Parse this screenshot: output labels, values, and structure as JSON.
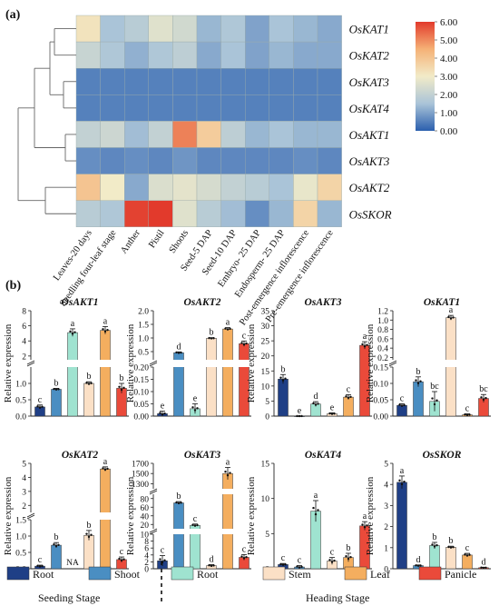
{
  "panel_a_label": "(a)",
  "panel_b_label": "(b)",
  "chart_data": [
    {
      "type": "heatmap",
      "rows": [
        "OsKAT1",
        "OsKAT2",
        "OsKAT3",
        "OsKAT4",
        "OsAKT1",
        "OsAKT3",
        "OsAKT2",
        "OsSKOR"
      ],
      "columns": [
        "Leaves-20 days",
        "Seedling four-leaf stage",
        "Anther",
        "Pistil",
        "Shoots",
        "Seed-5 DAP",
        "Seed-10 DAP",
        "Embryo- 25 DAP",
        "Endosperm- 25 DAP",
        "Post-emergence inflorescence",
        "Pre-emergence inflorescence"
      ],
      "values": [
        [
          3.2,
          1.5,
          1.8,
          2.6,
          2.3,
          1.3,
          1.6,
          1.0,
          1.5,
          1.3,
          1.1
        ],
        [
          2.1,
          1.6,
          1.2,
          1.6,
          1.9,
          1.1,
          1.5,
          1.0,
          1.3,
          1.1,
          1.1
        ],
        [
          0.5,
          0.5,
          0.5,
          0.5,
          0.5,
          0.5,
          0.5,
          0.5,
          0.5,
          0.5,
          0.5
        ],
        [
          0.5,
          0.5,
          0.5,
          0.5,
          0.5,
          0.5,
          0.5,
          0.5,
          0.5,
          0.5,
          0.5
        ],
        [
          2.0,
          2.2,
          1.4,
          2.0,
          5.1,
          3.8,
          1.9,
          1.3,
          1.5,
          1.3,
          1.3
        ],
        [
          0.7,
          0.6,
          0.7,
          0.6,
          0.8,
          0.6,
          0.6,
          0.6,
          0.6,
          0.7,
          0.6
        ],
        [
          4.0,
          3.0,
          1.1,
          2.5,
          2.7,
          2.4,
          2.0,
          1.8,
          1.5,
          2.8,
          3.6
        ],
        [
          1.8,
          1.6,
          5.9,
          6.0,
          2.6,
          1.8,
          1.4,
          0.7,
          1.3,
          3.6,
          1.3
        ]
      ],
      "colorbar": {
        "min": 0.0,
        "max": 6.0,
        "ticks": [
          "6.00",
          "5.00",
          "4.00",
          "3.00",
          "2.00",
          "1.00",
          "0.00"
        ],
        "colors": [
          "#2b5fae",
          "#aac4d8",
          "#f2ebc8",
          "#f5b176",
          "#e23a2c"
        ]
      },
      "dendrogram": true
    },
    {
      "type": "bar",
      "title": "OsAKT1",
      "ylabel": "Relative expression",
      "categories": [
        "Root",
        "Shoot",
        "Root",
        "Stem",
        "Leaf",
        "Panicle"
      ],
      "values": [
        0.28,
        0.82,
        5.1,
        1.0,
        5.4,
        0.85
      ],
      "errors": [
        0.06,
        0.03,
        0.5,
        0.05,
        0.5,
        0.15
      ],
      "letters": [
        "c",
        "b",
        "a",
        "b",
        "a",
        "b"
      ],
      "broken_axis": {
        "lower": [
          0,
          1.5
        ],
        "upper": [
          1.5,
          8
        ]
      },
      "ticks_lower": [
        "0.0",
        "0.5",
        "1.0"
      ],
      "ticks_upper": [
        "2",
        "4",
        "6",
        "8"
      ]
    },
    {
      "type": "bar",
      "title": "OsAKT2",
      "ylabel": "Relative expression",
      "categories": [
        "Root",
        "Shoot",
        "Root",
        "Stem",
        "Leaf",
        "Panicle"
      ],
      "values": [
        0.01,
        0.46,
        0.03,
        0.99,
        1.33,
        0.79
      ],
      "errors": [
        0.01,
        0.03,
        0.02,
        0.02,
        0.05,
        0.1
      ],
      "letters": [
        "e",
        "d",
        "e",
        "b",
        "a",
        "c"
      ],
      "broken_axis": {
        "lower": [
          0,
          0.2
        ],
        "upper": [
          0.2,
          2
        ]
      },
      "ticks_lower": [
        "0.00",
        "0.05",
        "0.10",
        "0.15",
        "0.20"
      ],
      "ticks_upper": [
        "0.5",
        "1.0",
        "1.5",
        "2.0"
      ]
    },
    {
      "type": "bar",
      "title": "OsAKT3",
      "ylabel": "Relative expression",
      "categories": [
        "Root",
        "Shoot",
        "Root",
        "Stem",
        "Leaf",
        "Panicle"
      ],
      "values": [
        12.3,
        0.0,
        4.0,
        0.8,
        6.3,
        23.5
      ],
      "errors": [
        1.5,
        0.05,
        0.8,
        0.3,
        0.8,
        1.2
      ],
      "letters": [
        "b",
        "e",
        "d",
        "e",
        "c",
        "a"
      ],
      "ylim": [
        0,
        35
      ],
      "ticks": [
        "0",
        "5",
        "10",
        "15",
        "20",
        "25",
        "30",
        "35"
      ]
    },
    {
      "type": "bar",
      "title": "OsKAT1",
      "ylabel": "Relative expression",
      "categories": [
        "Root",
        "Shoot",
        "Root",
        "Stem",
        "Leaf",
        "Panicle"
      ],
      "values": [
        0.033,
        0.105,
        0.045,
        1.05,
        0.004,
        0.054
      ],
      "errors": [
        0.005,
        0.015,
        0.03,
        0.05,
        0.003,
        0.012
      ],
      "letters": [
        "c",
        "b",
        "bc",
        "a",
        "c",
        "bc"
      ],
      "broken_axis": {
        "lower": [
          0,
          0.15
        ],
        "upper": [
          0.15,
          1.2
        ]
      },
      "ticks_lower": [
        "0.00",
        "0.05",
        "0.10",
        "0.15"
      ],
      "ticks_upper": [
        "0.2",
        "0.4",
        "0.6",
        "0.8",
        "1.0",
        "1.2"
      ]
    },
    {
      "type": "bar",
      "title": "OsKAT2",
      "ylabel": "Relative expression",
      "categories": [
        "Root",
        "Shoot",
        "Root",
        "Stem",
        "Leaf",
        "Panicle"
      ],
      "values": [
        0.08,
        0.72,
        null,
        1.02,
        4.6,
        0.28
      ],
      "errors": [
        0.03,
        0.08,
        0,
        0.15,
        0.15,
        0.08
      ],
      "letters": [
        "c",
        "b",
        "",
        "b",
        "a",
        "c"
      ],
      "na_label": "NA",
      "broken_axis": {
        "lower": [
          0,
          1.5
        ],
        "upper": [
          1.5,
          5
        ]
      },
      "ticks_lower": [
        "0.0",
        "0.5",
        "1.0",
        "1.5"
      ],
      "ticks_upper": [
        "2",
        "3",
        "4",
        "5"
      ]
    },
    {
      "type": "bar",
      "title": "OsKAT3",
      "ylabel": "Relative expression",
      "categories": [
        "Root",
        "Shoot",
        "Root",
        "Stem",
        "Leaf",
        "Panicle"
      ],
      "values": [
        2.3,
        70,
        18,
        0.9,
        1500,
        3.3
      ],
      "errors": [
        1.5,
        3,
        3,
        0.3,
        120,
        0.8
      ],
      "letters": [
        "c",
        "b",
        "c",
        "d",
        "a",
        "c"
      ],
      "broken_axis": {
        "lower": [
          0,
          10
        ],
        "upper": [
          10,
          1700
        ]
      },
      "ticks_lower": [
        "0",
        "2",
        "4",
        "6",
        "8",
        "10"
      ],
      "ticks_mid": [
        "20",
        "40",
        "60",
        "80"
      ],
      "ticks_upper": [
        "1300",
        "1500",
        "1700"
      ]
    },
    {
      "type": "bar",
      "title": "OsKAT4",
      "ylabel": "Relative expression",
      "categories": [
        "Root",
        "Shoot",
        "Root",
        "Stem",
        "Leaf",
        "Panicle"
      ],
      "values": [
        0.6,
        0.25,
        8.2,
        1.1,
        1.6,
        6.1
      ],
      "errors": [
        0.15,
        0.2,
        1.5,
        0.5,
        0.6,
        0.6
      ],
      "letters": [
        "c",
        "c",
        "a",
        "c",
        "b",
        "a"
      ],
      "ylim": [
        0,
        15
      ],
      "ticks": [
        "0",
        "5",
        "10",
        "15"
      ]
    },
    {
      "type": "bar",
      "title": "OsSKOR",
      "ylabel": "Relative expression",
      "categories": [
        "Root",
        "Shoot",
        "Root",
        "Stem",
        "Leaf",
        "Panicle"
      ],
      "values": [
        4.1,
        0.15,
        1.1,
        1.02,
        0.65,
        0.05
      ],
      "errors": [
        0.3,
        0.03,
        0.15,
        0.05,
        0.08,
        0.02
      ],
      "letters": [
        "a",
        "d",
        "b",
        "b",
        "c",
        "d"
      ],
      "ylim": [
        0,
        5
      ],
      "ticks": [
        "0",
        "1",
        "2",
        "3",
        "4",
        "5"
      ]
    }
  ],
  "legend": {
    "items": [
      {
        "label": "Root",
        "color": "#1f3f86"
      },
      {
        "label": "Shoot",
        "color": "#4a8ec2"
      },
      {
        "label": "Root",
        "color": "#9fe3d0"
      },
      {
        "label": "Stem",
        "color": "#fbe0c6"
      },
      {
        "label": "Leaf",
        "color": "#f4ae5f"
      },
      {
        "label": "Panicle",
        "color": "#ea4a3a"
      }
    ],
    "seeding_stage": "Seeding Stage",
    "heading_stage": "Heading Stage"
  }
}
